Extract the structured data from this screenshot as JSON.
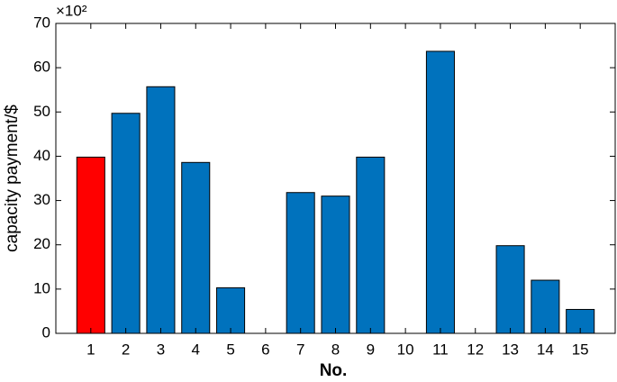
{
  "chart_data": {
    "type": "bar",
    "y_label": "capacity payment/$",
    "x_label": "No.",
    "y_multiplier": "×10²",
    "x": [
      1,
      2,
      3,
      4,
      5,
      6,
      7,
      8,
      9,
      10,
      11,
      12,
      13,
      14,
      15
    ],
    "values": [
      39.8,
      49.7,
      55.7,
      38.6,
      10.3,
      0,
      31.8,
      31,
      39.8,
      0,
      63.7,
      0,
      19.8,
      12,
      5.4
    ],
    "colors": [
      "#ff0000",
      "#0072bd",
      "#0072bd",
      "#0072bd",
      "#0072bd",
      "#0072bd",
      "#0072bd",
      "#0072bd",
      "#0072bd",
      "#0072bd",
      "#0072bd",
      "#0072bd",
      "#0072bd",
      "#0072bd",
      "#0072bd"
    ],
    "xlim": [
      0,
      16
    ],
    "xticks": [
      1,
      2,
      3,
      4,
      5,
      6,
      7,
      8,
      9,
      10,
      11,
      12,
      13,
      14,
      15
    ],
    "ylim": [
      0,
      70
    ],
    "yticks": [
      0,
      10,
      20,
      30,
      40,
      50,
      60,
      70
    ]
  }
}
